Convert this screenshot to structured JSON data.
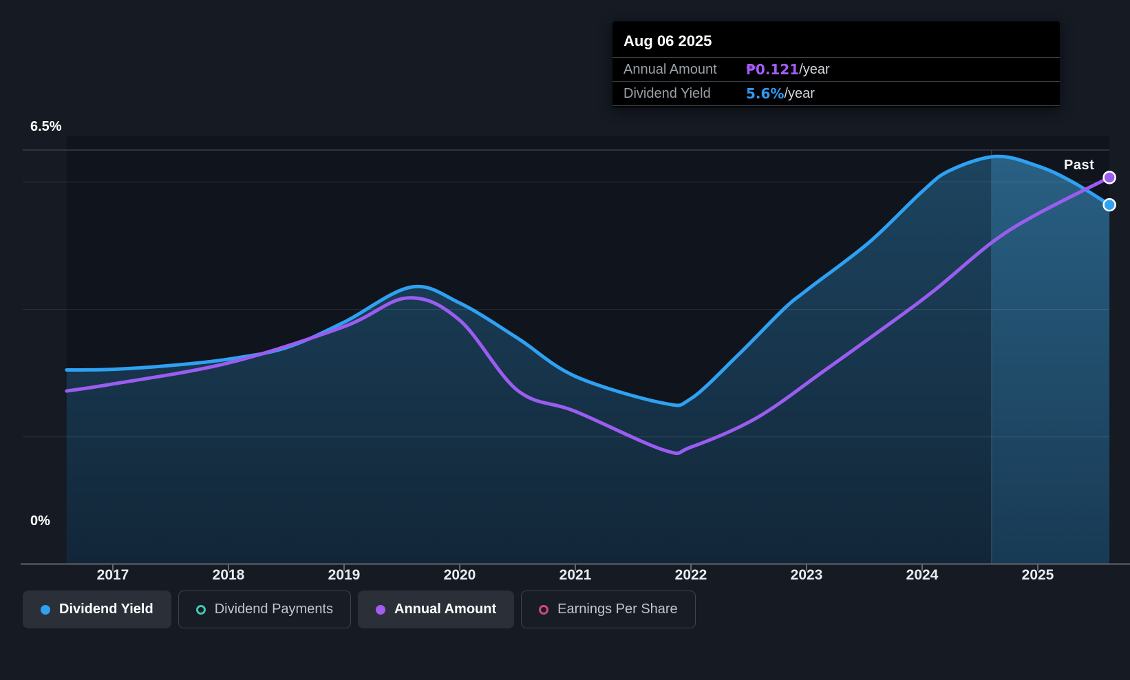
{
  "colors": {
    "background": "#151a23",
    "plot_background": "#0f141d",
    "dividend_yield_line": "#2fa1f2",
    "annual_amount_line": "#9a5df0",
    "dividend_payments_marker": "#41c8b4",
    "earnings_per_share_marker": "#d0477f",
    "area_fill_top": "#1d4662",
    "area_fill_bottom": "#122638",
    "band_fill_top": "#2a6286",
    "band_fill_bottom": "#183a54",
    "band_edge_line": "#3d637d",
    "gridline": "rgba(255,255,255,0.10)",
    "gridline_top": "#4b535c",
    "axis_line": "#62686f",
    "dot_ring": "#ffffff",
    "tooltip_value_annual": "#a55cf7",
    "tooltip_value_yield": "#2f9bf5"
  },
  "tooltip": {
    "date": "Aug 06 2025",
    "rows": [
      {
        "label": "Annual Amount",
        "value": "₱0.121",
        "suffix": "/year",
        "value_color": "#a55cf7"
      },
      {
        "label": "Dividend Yield",
        "value": "5.6%",
        "suffix": "/year",
        "value_color": "#2f9bf5"
      }
    ]
  },
  "past_label": "Past",
  "legend": {
    "items": [
      {
        "label": "Dividend Yield",
        "marker": "filled",
        "color": "#2fa1f2",
        "active": true
      },
      {
        "label": "Dividend Payments",
        "marker": "hollow",
        "color": "#41c8b4",
        "active": false
      },
      {
        "label": "Annual Amount",
        "marker": "filled",
        "color": "#a55cf0",
        "active": true
      },
      {
        "label": "Earnings Per Share",
        "marker": "hollow",
        "color": "#d0477f",
        "active": false
      }
    ]
  },
  "chart_data": {
    "type": "area",
    "title": "Dividend history (yield and annual amount) over time",
    "x_tick_labels": [
      "2017",
      "2018",
      "2019",
      "2020",
      "2021",
      "2022",
      "2023",
      "2024",
      "2025"
    ],
    "xlim": [
      2016.6,
      2025.62
    ],
    "ylim_pct": [
      0,
      6.5
    ],
    "y_axis_labels": {
      "top": "6.5%",
      "bottom": "0%"
    },
    "gridlines_pct": [
      6.5,
      6,
      4,
      2
    ],
    "past_band_x": [
      2024.6,
      2025.62
    ],
    "legend_position": "bottom",
    "series": [
      {
        "name": "Dividend Yield",
        "unit": "%",
        "color": "#2fa1f2",
        "fill_area": true,
        "final_value_label": "5.6%/year",
        "x": [
          2016.6,
          2017.0,
          2017.5,
          2018.0,
          2018.5,
          2019.0,
          2019.58,
          2020.0,
          2020.5,
          2021.0,
          2021.76,
          2022.0,
          2022.4,
          2022.8,
          2023.0,
          2023.54,
          2024.0,
          2024.24,
          2024.64,
          2025.0,
          2025.3,
          2025.62
        ],
        "y": [
          3.05,
          3.06,
          3.12,
          3.22,
          3.4,
          3.8,
          4.35,
          4.1,
          3.55,
          2.95,
          2.53,
          2.6,
          3.27,
          4.0,
          4.3,
          5.05,
          5.85,
          6.18,
          6.4,
          6.25,
          6.0,
          5.64
        ]
      },
      {
        "name": "Annual Amount",
        "unit": "axis-equivalent % (endpoint = ₱0.121/year)",
        "color": "#9a5df0",
        "fill_area": false,
        "final_value_label": "₱0.121/year",
        "x": [
          2016.6,
          2017.0,
          2018.0,
          2019.0,
          2019.55,
          2020.0,
          2020.5,
          2021.0,
          2021.77,
          2022.0,
          2022.57,
          2023.17,
          2023.76,
          2024.12,
          2024.61,
          2025.0,
          2025.62
        ],
        "y": [
          2.72,
          2.83,
          3.16,
          3.73,
          4.18,
          3.83,
          2.73,
          2.4,
          1.79,
          1.84,
          2.3,
          3.06,
          3.83,
          4.32,
          5.06,
          5.5,
          6.07
        ]
      }
    ]
  }
}
